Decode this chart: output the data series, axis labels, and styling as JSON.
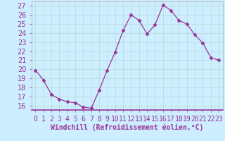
{
  "x": [
    0,
    1,
    2,
    3,
    4,
    5,
    6,
    7,
    8,
    9,
    10,
    11,
    12,
    13,
    14,
    15,
    16,
    17,
    18,
    19,
    20,
    21,
    22,
    23
  ],
  "y": [
    19.9,
    18.8,
    17.2,
    16.7,
    16.4,
    16.3,
    15.8,
    15.7,
    17.7,
    19.9,
    21.9,
    24.3,
    26.0,
    25.4,
    23.9,
    24.9,
    27.1,
    26.5,
    25.4,
    25.0,
    23.8,
    22.9,
    21.3,
    21.0
  ],
  "line_color": "#993399",
  "marker": "D",
  "marker_size": 2.5,
  "bg_color": "#cceeff",
  "grid_color": "#bbdddd",
  "xlabel": "Windchill (Refroidissement éolien,°C)",
  "xlabel_fontsize": 7,
  "tick_fontsize": 7,
  "ylabel_ticks": [
    16,
    17,
    18,
    19,
    20,
    21,
    22,
    23,
    24,
    25,
    26,
    27
  ],
  "xlim": [
    -0.5,
    23.5
  ],
  "ylim": [
    15.5,
    27.5
  ],
  "xtick_labels": [
    "0",
    "1",
    "2",
    "3",
    "4",
    "5",
    "6",
    "7",
    "8",
    "9",
    "10",
    "11",
    "12",
    "13",
    "14",
    "15",
    "16",
    "17",
    "18",
    "19",
    "20",
    "21",
    "22",
    "23"
  ],
  "border_color": "#993399",
  "spine_bottom_color": "#993399",
  "label_color": "#993399"
}
